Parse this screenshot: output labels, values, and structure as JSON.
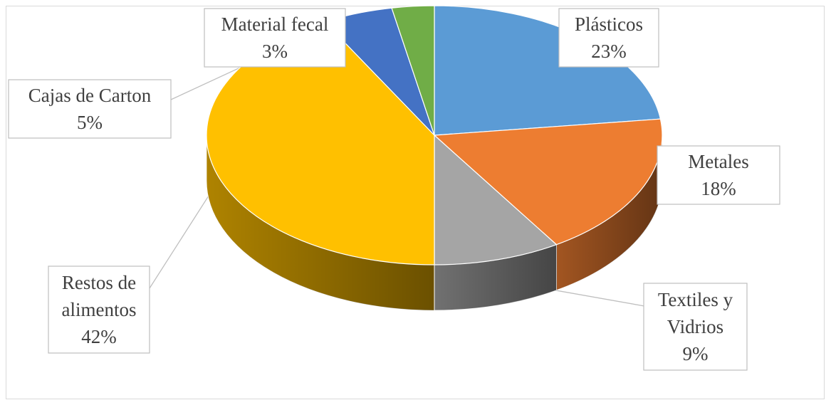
{
  "chart_data": {
    "type": "pie",
    "subtype": "3d",
    "title": "",
    "slices": [
      {
        "label": "Plásticos",
        "label_lines": [
          "Plásticos"
        ],
        "value": 23,
        "value_text": "23%",
        "color": "#5b9bd5"
      },
      {
        "label": "Metales",
        "label_lines": [
          "Metales"
        ],
        "value": 18,
        "value_text": "18%",
        "color": "#ed7d31"
      },
      {
        "label": "Textiles y Vidrios",
        "label_lines": [
          "Textiles y",
          "Vidrios"
        ],
        "value": 9,
        "value_text": "9%",
        "color": "#a5a5a5"
      },
      {
        "label": "Restos de alimentos",
        "label_lines": [
          "Restos de",
          "alimentos"
        ],
        "value": 42,
        "value_text": "42%",
        "color": "#ffc000"
      },
      {
        "label": "Cajas de Carton",
        "label_lines": [
          "Cajas de  Carton"
        ],
        "value": 5,
        "value_text": "5%",
        "color": "#4472c4"
      },
      {
        "label": "Material fecal",
        "label_lines": [
          "Material fecal"
        ],
        "value": 3,
        "value_text": "3%",
        "color": "#70ad47"
      }
    ],
    "legend": "none",
    "data_labels": "callouts"
  }
}
